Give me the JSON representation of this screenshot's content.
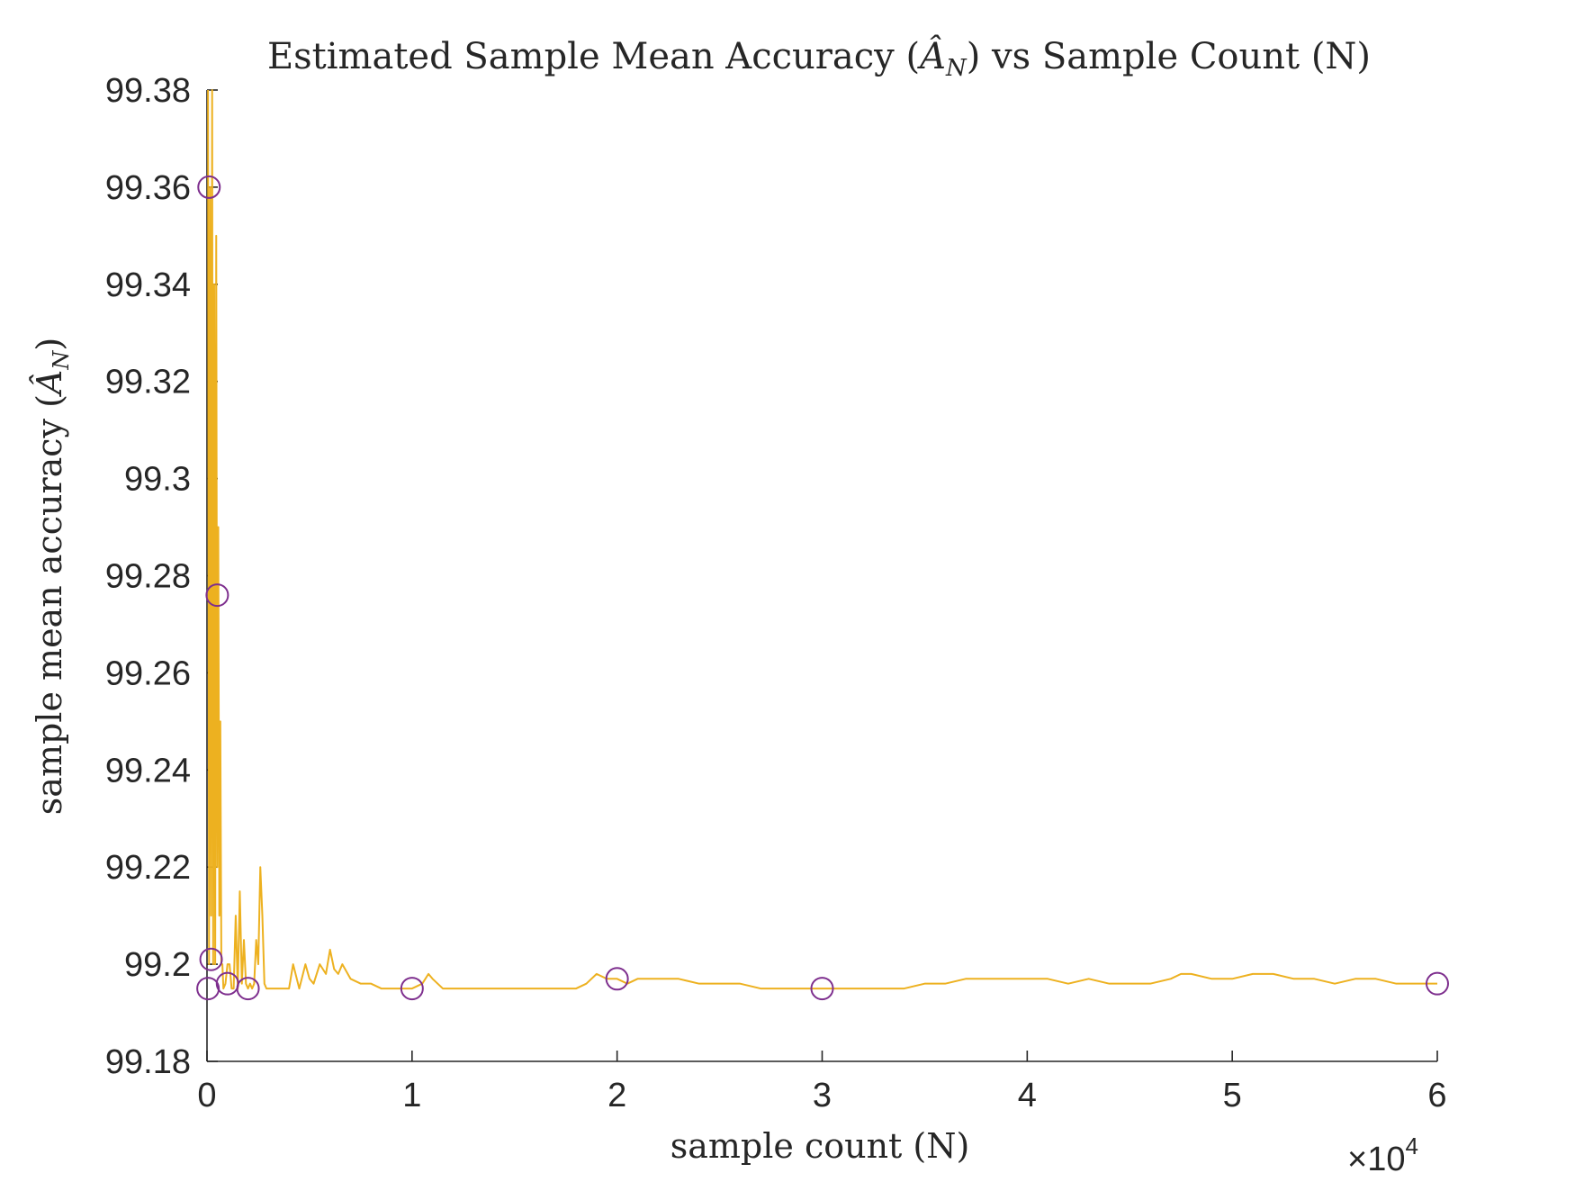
{
  "chart_data": {
    "type": "line",
    "title_parts": {
      "before": "Estimated Sample Mean Accuracy (",
      "symbol": "Â",
      "subscript": "N",
      "after": ") vs Sample Count (N)"
    },
    "xlabel": "sample count (N)",
    "ylabel_parts": {
      "before": "sample mean accuracy (",
      "symbol": "Â",
      "subscript": "N",
      "after": ")"
    },
    "x_exponent_label": {
      "base": "×10",
      "exponent": "4"
    },
    "xlim": [
      0,
      60000
    ],
    "ylim": [
      99.18,
      99.38
    ],
    "x_ticks": [
      0,
      10000,
      20000,
      30000,
      40000,
      50000,
      60000
    ],
    "x_tick_labels": [
      "0",
      "1",
      "2",
      "3",
      "4",
      "5",
      "6"
    ],
    "y_ticks": [
      99.18,
      99.2,
      99.22,
      99.24,
      99.26,
      99.28,
      99.3,
      99.32,
      99.34,
      99.36,
      99.38
    ],
    "y_tick_labels": [
      "99.18",
      "99.2",
      "99.22",
      "99.24",
      "99.26",
      "99.28",
      "99.3",
      "99.32",
      "99.34",
      "99.36",
      "99.38"
    ],
    "grid": false,
    "series": [
      {
        "color": "#EDB120",
        "style": "line",
        "x": [
          50,
          100,
          150,
          200,
          250,
          300,
          350,
          400,
          450,
          500,
          550,
          600,
          650,
          700,
          750,
          800,
          900,
          1000,
          1100,
          1200,
          1300,
          1400,
          1500,
          1600,
          1700,
          1800,
          1900,
          2000,
          2100,
          2200,
          2300,
          2400,
          2500,
          2600,
          2700,
          2800,
          2900,
          3000,
          3500,
          4000,
          4200,
          4500,
          4800,
          5000,
          5200,
          5500,
          5800,
          6000,
          6200,
          6400,
          6600,
          7000,
          7500,
          8000,
          8500,
          9000,
          9500,
          10000,
          10500,
          10800,
          11000,
          11500,
          12000,
          13000,
          14000,
          15000,
          16000,
          17000,
          18000,
          18500,
          19000,
          19500,
          20000,
          20500,
          21000,
          22000,
          23000,
          24000,
          25000,
          26000,
          27000,
          28000,
          29000,
          30000,
          31000,
          32000,
          33000,
          34000,
          35000,
          36000,
          37000,
          38000,
          39000,
          40000,
          41000,
          42000,
          43000,
          44000,
          45000,
          46000,
          47000,
          47500,
          48000,
          49000,
          50000,
          51000,
          52000,
          53000,
          54000,
          55000,
          56000,
          57000,
          58000,
          59000,
          60000
        ],
        "y": [
          99.38,
          99.2,
          99.36,
          99.21,
          99.38,
          99.2,
          99.34,
          99.2,
          99.35,
          99.22,
          99.29,
          99.21,
          99.25,
          99.2,
          99.2,
          99.195,
          99.196,
          99.2,
          99.2,
          99.195,
          99.195,
          99.21,
          99.195,
          99.215,
          99.196,
          99.205,
          99.196,
          99.195,
          99.196,
          99.195,
          99.196,
          99.205,
          99.2,
          99.22,
          99.21,
          99.196,
          99.195,
          99.195,
          99.195,
          99.195,
          99.2,
          99.195,
          99.2,
          99.197,
          99.196,
          99.2,
          99.198,
          99.203,
          99.199,
          99.198,
          99.2,
          99.197,
          99.196,
          99.196,
          99.195,
          99.195,
          99.195,
          99.195,
          99.196,
          99.198,
          99.197,
          99.195,
          99.195,
          99.195,
          99.195,
          99.195,
          99.195,
          99.195,
          99.195,
          99.196,
          99.198,
          99.197,
          99.197,
          99.196,
          99.197,
          99.197,
          99.197,
          99.196,
          99.196,
          99.196,
          99.195,
          99.195,
          99.195,
          99.195,
          99.195,
          99.195,
          99.195,
          99.195,
          99.196,
          99.196,
          99.197,
          99.197,
          99.197,
          99.197,
          99.197,
          99.196,
          99.197,
          99.196,
          99.196,
          99.196,
          99.197,
          99.198,
          99.198,
          99.197,
          99.197,
          99.198,
          99.198,
          99.197,
          99.197,
          99.196,
          99.197,
          99.197,
          99.196,
          99.196,
          99.196
        ]
      },
      {
        "color": "#7E2F8E",
        "style": "markers",
        "marker": "circle",
        "x": [
          50,
          100,
          200,
          500,
          1000,
          2000,
          10000,
          20000,
          30000,
          60000
        ],
        "y": [
          99.195,
          99.36,
          99.201,
          99.276,
          99.196,
          99.195,
          99.195,
          99.197,
          99.195,
          99.196
        ]
      }
    ]
  }
}
